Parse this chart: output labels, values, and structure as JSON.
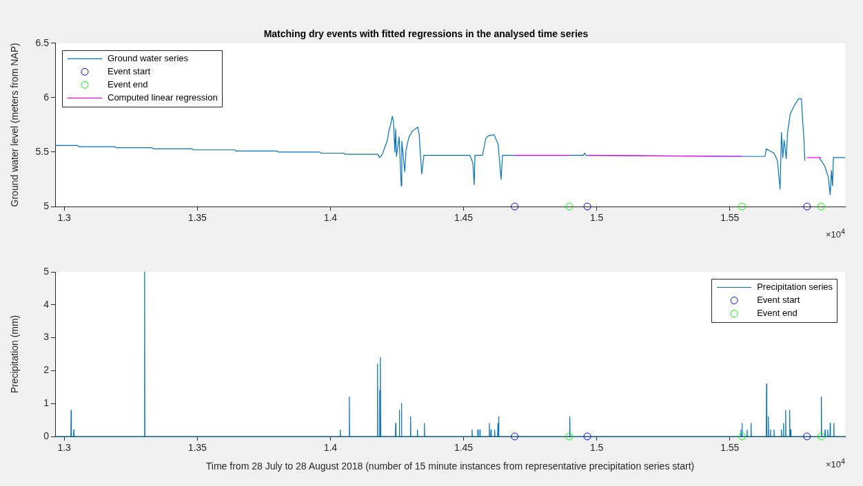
{
  "chart_data": [
    {
      "type": "line",
      "title": "Matching dry events with fitted regressions in the analysed time series",
      "ylabel": "Ground water level (meters from NAP)",
      "xlim": [
        1.2966,
        1.5933
      ],
      "xticks": [
        1.3,
        1.35,
        1.4,
        1.45,
        1.5,
        1.55
      ],
      "ylim": [
        5,
        6.5
      ],
      "yticks": [
        5,
        5.5,
        6,
        6.5
      ],
      "grid": false,
      "legend": "top left",
      "annotations": [
        "×10$^{4}$"
      ],
      "series": [
        {
          "name": "Ground water series",
          "type": "line",
          "marker": "none",
          "color": "#0072bd",
          "x": [
            1.2966,
            1.305,
            1.3055,
            1.319,
            1.3195,
            1.333,
            1.3335,
            1.348,
            1.3485,
            1.364,
            1.3645,
            1.38,
            1.3805,
            1.396,
            1.3965,
            1.405,
            1.4055,
            1.4178,
            1.4185,
            1.4195,
            1.4201,
            1.4214,
            1.422,
            1.4227,
            1.4232,
            1.4237,
            1.4242,
            1.4245,
            1.4248,
            1.4258,
            1.4266,
            1.4268,
            1.4279,
            1.4284,
            1.4294,
            1.4307,
            1.4328,
            1.4333,
            1.4338,
            1.4343,
            1.4351,
            1.4524,
            1.4535,
            1.454,
            1.4543,
            1.4571,
            1.4584,
            1.4594,
            1.4615,
            1.463,
            1.4641,
            1.4646,
            1.495,
            1.4955,
            1.496,
            1.5588,
            1.5632,
            1.5637,
            1.5666,
            1.5679,
            1.5689,
            1.5694,
            1.5699,
            1.5704,
            1.5712,
            1.5717,
            1.5727,
            1.5743,
            1.5759,
            1.5769,
            1.5774,
            1.5777,
            1.5782,
            1.579,
            1.5836,
            1.5857,
            1.587,
            1.5877,
            1.5882,
            1.5886,
            1.5889,
            1.5933
          ],
          "values": [
            5.56,
            5.56,
            5.55,
            5.55,
            5.54,
            5.54,
            5.53,
            5.53,
            5.52,
            5.52,
            5.51,
            5.51,
            5.5,
            5.5,
            5.49,
            5.49,
            5.48,
            5.48,
            5.45,
            5.48,
            5.52,
            5.61,
            5.7,
            5.76,
            5.83,
            5.78,
            5.5,
            5.71,
            5.46,
            5.64,
            5.19,
            5.6,
            5.32,
            5.52,
            5.63,
            5.69,
            5.73,
            5.67,
            5.48,
            5.3,
            5.47,
            5.47,
            5.4,
            5.2,
            5.47,
            5.47,
            5.63,
            5.65,
            5.66,
            5.57,
            5.25,
            5.47,
            5.47,
            5.49,
            5.47,
            5.46,
            5.46,
            5.53,
            5.49,
            5.42,
            5.16,
            5.68,
            5.45,
            5.61,
            5.44,
            5.68,
            5.85,
            5.93,
            5.99,
            5.99,
            5.77,
            5.68,
            5.42,
            null,
            5.45,
            5.37,
            5.27,
            5.11,
            5.33,
            5.19,
            5.45,
            5.45
          ]
        },
        {
          "name": "Event start",
          "type": "scatter",
          "marker": "circle",
          "color": "#0000ff",
          "x": [
            1.4692,
            1.4965,
            1.579
          ],
          "values": [
            5,
            5,
            5
          ]
        },
        {
          "name": "Event end",
          "type": "scatter",
          "marker": "circle",
          "color": "#00ff00",
          "x": [
            1.4897,
            1.5546,
            1.5843
          ],
          "values": [
            5,
            5,
            5
          ]
        },
        {
          "name": "Computed linear regression",
          "type": "line",
          "marker": "none",
          "color": "#ff00ff",
          "x": [
            1.4692,
            1.4897,
            1.493,
            1.4965,
            1.5546,
            1.566,
            1.579,
            1.5843
          ],
          "values": [
            5.47,
            5.47,
            null,
            5.47,
            5.46,
            null,
            5.45,
            5.45
          ]
        }
      ]
    },
    {
      "type": "line",
      "xlabel": "Time from 28 July to 28 August 2018 (number of 15 minute instances from representative precipitation series start)",
      "ylabel": "Precipitation (mm)",
      "xlim": [
        1.2966,
        1.5933
      ],
      "xticks": [
        1.3,
        1.35,
        1.4,
        1.45,
        1.5,
        1.55
      ],
      "ylim": [
        0,
        5
      ],
      "yticks": [
        0,
        1,
        2,
        3,
        4,
        5
      ],
      "grid": false,
      "legend": "top right",
      "annotations": [
        "×10$^{4}$"
      ],
      "series": [
        {
          "name": "Precipitation series",
          "type": "line",
          "marker": "none",
          "color": "#0072bd",
          "x": [
            1.2966,
            1.3025,
            1.3026,
            1.3027,
            1.3035,
            1.3036,
            1.3037,
            1.3301,
            1.3302,
            1.3303,
            1.4036,
            1.4037,
            1.4038,
            1.407,
            1.4071,
            1.4072,
            1.4176,
            1.4177,
            1.4178,
            1.4184,
            1.4185,
            1.4186,
            1.4187,
            1.4188,
            1.4189,
            1.4244,
            1.4245,
            1.4246,
            1.4258,
            1.4259,
            1.426,
            1.4266,
            1.4267,
            1.4268,
            1.43,
            1.4301,
            1.4302,
            1.4326,
            1.4327,
            1.4328,
            1.4352,
            1.4353,
            1.4354,
            1.4531,
            1.4532,
            1.4533,
            1.4551,
            1.4552,
            1.4553,
            1.4556,
            1.4557,
            1.4558,
            1.4561,
            1.4562,
            1.4563,
            1.4596,
            1.4597,
            1.4598,
            1.4602,
            1.4603,
            1.4604,
            1.4616,
            1.4617,
            1.4618,
            1.4628,
            1.4629,
            1.463,
            1.4631,
            1.4632,
            1.4633,
            1.4898,
            1.4899,
            1.49,
            1.5541,
            1.5542,
            1.5543,
            1.5545,
            1.5546,
            1.5547,
            1.5564,
            1.5565,
            1.5566,
            1.5579,
            1.558,
            1.5581,
            1.5637,
            1.5638,
            1.5639,
            1.5644,
            1.5645,
            1.5646,
            1.5652,
            1.5653,
            1.5654,
            1.5665,
            1.5666,
            1.5667,
            1.5693,
            1.5694,
            1.5695,
            1.5701,
            1.5702,
            1.5703,
            1.5709,
            1.571,
            1.5711,
            1.5724,
            1.5725,
            1.5726,
            1.5728,
            1.5729,
            1.573,
            1.5843,
            1.5844,
            1.5845,
            1.5857,
            1.5858,
            1.5859,
            1.5867,
            1.5868,
            1.5869,
            1.5876,
            1.5877,
            1.5878,
            1.589,
            1.5891,
            1.5892,
            1.5933
          ],
          "values": [
            0,
            0,
            0.8,
            0,
            0,
            0.2,
            0,
            0,
            5,
            0,
            0,
            0.2,
            0,
            0,
            1.2,
            0,
            0,
            2.2,
            0,
            0,
            1.4,
            0,
            0,
            2.4,
            0,
            0,
            0.4,
            0,
            0,
            0.8,
            0,
            0,
            1,
            0,
            0,
            0.6,
            0,
            0,
            0.2,
            0,
            0,
            0.4,
            0,
            0,
            0.2,
            0,
            0,
            0.2,
            0,
            0,
            0.2,
            0,
            0,
            0.2,
            0,
            0,
            0.4,
            0,
            0,
            0.2,
            0,
            0,
            0.2,
            0,
            0,
            0.4,
            0,
            0,
            0.6,
            0,
            0,
            0.6,
            0,
            0,
            0.2,
            0,
            0,
            0.4,
            0,
            0,
            0.2,
            0,
            0,
            0.4,
            0,
            0,
            1.6,
            0,
            0,
            0.6,
            0,
            0,
            0.2,
            0,
            0,
            0.2,
            0,
            0,
            0.2,
            0,
            0,
            0.4,
            0,
            0,
            0.8,
            0,
            0,
            0.8,
            0,
            0,
            0.2,
            0,
            0,
            1.2,
            0,
            0,
            0.2,
            0,
            0,
            0.2,
            0,
            0,
            0.4,
            0,
            0,
            0.4,
            0,
            0
          ]
        },
        {
          "name": "Event start",
          "type": "scatter",
          "marker": "circle",
          "color": "#0000ff",
          "x": [
            1.4692,
            1.4965,
            1.579
          ],
          "values": [
            0,
            0,
            0
          ]
        },
        {
          "name": "Event end",
          "type": "scatter",
          "marker": "circle",
          "color": "#00ff00",
          "x": [
            1.4897,
            1.5546,
            1.5843
          ],
          "values": [
            0,
            0,
            0
          ]
        }
      ]
    }
  ]
}
